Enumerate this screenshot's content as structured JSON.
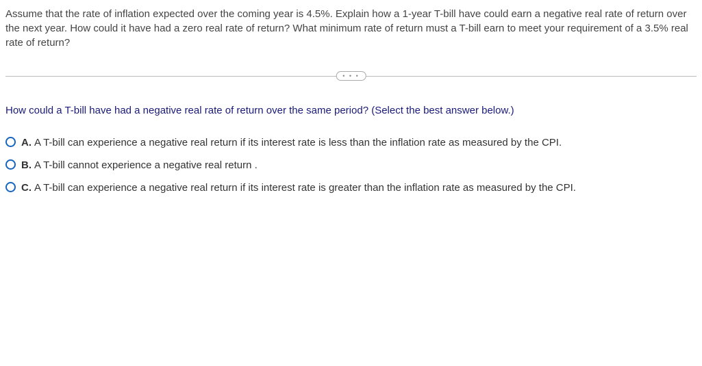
{
  "question": {
    "prompt": "Assume that the rate of inflation expected over the coming year is 4.5%. Explain how a 1-year T-bill have could earn a negative real rate of return over the next year. How could it have had a zero real rate of return? What minimum rate of return must a T-bill earn to meet your requirement of a 3.5% real rate of return?",
    "divider_glyph": "• • •",
    "sub_prompt_main": "How could  a T-bill have had a negative real rate of return over the same period?  ",
    "sub_prompt_hint": "(Select the best answer below.)"
  },
  "options": [
    {
      "letter": "A.",
      "text": "A T-bill can experience a negative real return if its interest rate is less than the inflation rate as measured by the CPI."
    },
    {
      "letter": "B.",
      "text": "A T-bill cannot experience a negative real return ."
    },
    {
      "letter": "C.",
      "text": "A T-bill can experience a negative real return if its interest rate is greater than the inflation rate as measured by the CPI."
    }
  ],
  "colors": {
    "text": "#333333",
    "sub_prompt": "#1a1a7a",
    "radio_border": "#1565c0",
    "divider": "#bbbbbb",
    "background": "#ffffff"
  }
}
